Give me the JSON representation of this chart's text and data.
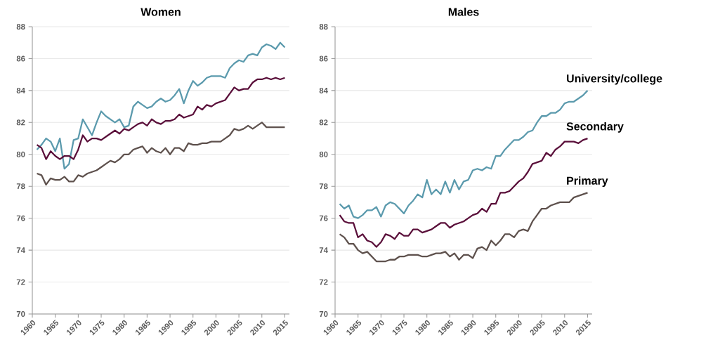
{
  "chart_data": [
    {
      "type": "line",
      "title": "Women",
      "x": [
        1961,
        1962,
        1963,
        1964,
        1965,
        1966,
        1967,
        1968,
        1969,
        1970,
        1971,
        1972,
        1973,
        1974,
        1975,
        1976,
        1977,
        1978,
        1979,
        1980,
        1981,
        1982,
        1983,
        1984,
        1985,
        1986,
        1987,
        1988,
        1989,
        1990,
        1991,
        1992,
        1993,
        1994,
        1995,
        1996,
        1997,
        1998,
        1999,
        2000,
        2001,
        2002,
        2003,
        2004,
        2005,
        2006,
        2007,
        2008,
        2009,
        2010,
        2011,
        2012,
        2013,
        2014,
        2015
      ],
      "series": [
        {
          "color": "#5b9aad",
          "values": [
            80.3,
            80.6,
            81.0,
            80.8,
            80.2,
            81.0,
            79.1,
            79.4,
            80.9,
            81.0,
            82.2,
            81.7,
            81.2,
            82.0,
            82.7,
            82.4,
            82.2,
            82.0,
            82.2,
            81.7,
            81.8,
            83.0,
            83.3,
            83.1,
            82.9,
            83.0,
            83.3,
            83.5,
            83.3,
            83.4,
            83.7,
            84.1,
            83.2,
            84.0,
            84.6,
            84.3,
            84.5,
            84.8,
            84.9,
            84.9,
            84.9,
            84.8,
            85.4,
            85.7,
            85.9,
            85.8,
            86.2,
            86.3,
            86.2,
            86.7,
            86.9,
            86.8,
            86.6,
            87.0,
            86.7
          ]
        },
        {
          "color": "#5a0f3a",
          "values": [
            80.6,
            80.4,
            79.7,
            80.2,
            79.9,
            79.7,
            79.9,
            79.9,
            79.7,
            80.3,
            81.2,
            80.8,
            81.0,
            81.0,
            80.9,
            81.1,
            81.3,
            81.5,
            81.3,
            81.6,
            81.5,
            81.7,
            81.9,
            82.0,
            81.8,
            82.2,
            82.0,
            81.9,
            82.1,
            82.1,
            82.2,
            82.5,
            82.3,
            82.4,
            82.5,
            83.0,
            82.8,
            83.1,
            83.0,
            83.2,
            83.3,
            83.4,
            83.8,
            84.2,
            84.0,
            84.1,
            84.1,
            84.5,
            84.7,
            84.7,
            84.8,
            84.7,
            84.8,
            84.7,
            84.8
          ]
        },
        {
          "color": "#5e514d",
          "values": [
            78.8,
            78.7,
            78.1,
            78.5,
            78.4,
            78.4,
            78.6,
            78.3,
            78.3,
            78.7,
            78.6,
            78.8,
            78.9,
            79.0,
            79.2,
            79.4,
            79.6,
            79.5,
            79.7,
            80.0,
            80.0,
            80.3,
            80.4,
            80.5,
            80.1,
            80.4,
            80.2,
            80.1,
            80.4,
            80.0,
            80.4,
            80.4,
            80.2,
            80.7,
            80.6,
            80.6,
            80.7,
            80.7,
            80.8,
            80.8,
            80.8,
            81.0,
            81.2,
            81.6,
            81.5,
            81.6,
            81.8,
            81.6,
            81.8,
            82.0,
            81.7,
            81.7,
            81.7,
            81.7,
            81.7
          ]
        }
      ],
      "xlim": [
        1960,
        2016
      ],
      "ylim": [
        70,
        88
      ],
      "xticks": [
        1960,
        1965,
        1970,
        1975,
        1980,
        1985,
        1990,
        1995,
        2000,
        2005,
        2010,
        2015
      ],
      "yticks": [
        70,
        72,
        74,
        76,
        78,
        80,
        82,
        84,
        86,
        88
      ],
      "grid": "y"
    },
    {
      "type": "line",
      "title": "Males",
      "x": [
        1961,
        1962,
        1963,
        1964,
        1965,
        1966,
        1967,
        1968,
        1969,
        1970,
        1971,
        1972,
        1973,
        1974,
        1975,
        1976,
        1977,
        1978,
        1979,
        1980,
        1981,
        1982,
        1983,
        1984,
        1985,
        1986,
        1987,
        1988,
        1989,
        1990,
        1991,
        1992,
        1993,
        1994,
        1995,
        1996,
        1997,
        1998,
        1999,
        2000,
        2001,
        2002,
        2003,
        2004,
        2005,
        2006,
        2007,
        2008,
        2009,
        2010,
        2011,
        2012,
        2013,
        2014,
        2015
      ],
      "series": [
        {
          "name": "University/college",
          "color": "#5b9aad",
          "values": [
            76.9,
            76.6,
            76.8,
            76.1,
            76.0,
            76.2,
            76.5,
            76.5,
            76.7,
            76.1,
            76.8,
            77.0,
            76.9,
            76.6,
            76.3,
            76.8,
            77.1,
            77.5,
            77.3,
            78.4,
            77.5,
            77.8,
            77.5,
            78.3,
            77.6,
            78.4,
            77.8,
            78.3,
            78.4,
            79.0,
            79.1,
            79.0,
            79.2,
            79.1,
            79.9,
            79.9,
            80.3,
            80.6,
            80.9,
            80.9,
            81.1,
            81.4,
            81.5,
            82.0,
            82.4,
            82.4,
            82.6,
            82.6,
            82.8,
            83.2,
            83.3,
            83.3,
            83.5,
            83.7,
            84.0
          ]
        },
        {
          "name": "Secondary",
          "color": "#5a0f3a",
          "values": [
            76.2,
            75.8,
            75.7,
            75.7,
            74.8,
            75.0,
            74.6,
            74.5,
            74.2,
            74.5,
            75.0,
            74.9,
            74.7,
            75.1,
            74.9,
            74.9,
            75.3,
            75.3,
            75.1,
            75.2,
            75.3,
            75.5,
            75.7,
            75.7,
            75.4,
            75.6,
            75.7,
            75.8,
            76.0,
            76.2,
            76.3,
            76.6,
            76.4,
            76.9,
            76.9,
            77.6,
            77.6,
            77.7,
            78.0,
            78.3,
            78.5,
            78.9,
            79.4,
            79.5,
            79.6,
            80.1,
            79.9,
            80.3,
            80.5,
            80.8,
            80.8,
            80.8,
            80.7,
            80.9,
            81.0
          ]
        },
        {
          "name": "Primary",
          "color": "#5e514d",
          "values": [
            75.0,
            74.8,
            74.4,
            74.4,
            74.0,
            73.8,
            73.9,
            73.6,
            73.3,
            73.3,
            73.3,
            73.4,
            73.4,
            73.6,
            73.6,
            73.7,
            73.7,
            73.7,
            73.6,
            73.6,
            73.7,
            73.8,
            73.8,
            73.9,
            73.6,
            73.8,
            73.4,
            73.7,
            73.7,
            73.5,
            74.1,
            74.2,
            74.0,
            74.6,
            74.3,
            74.6,
            75.0,
            75.0,
            74.8,
            75.2,
            75.3,
            75.2,
            75.8,
            76.2,
            76.6,
            76.6,
            76.8,
            76.9,
            77.0,
            77.0,
            77.0,
            77.3,
            77.4,
            77.5,
            77.6
          ]
        }
      ],
      "xlim": [
        1960,
        2016
      ],
      "ylim": [
        70,
        88
      ],
      "xticks": [
        1960,
        1965,
        1970,
        1975,
        1980,
        1985,
        1990,
        1995,
        2000,
        2005,
        2010,
        2015
      ],
      "yticks": [
        70,
        72,
        74,
        76,
        78,
        80,
        82,
        84,
        86,
        88
      ],
      "grid": "y"
    }
  ]
}
